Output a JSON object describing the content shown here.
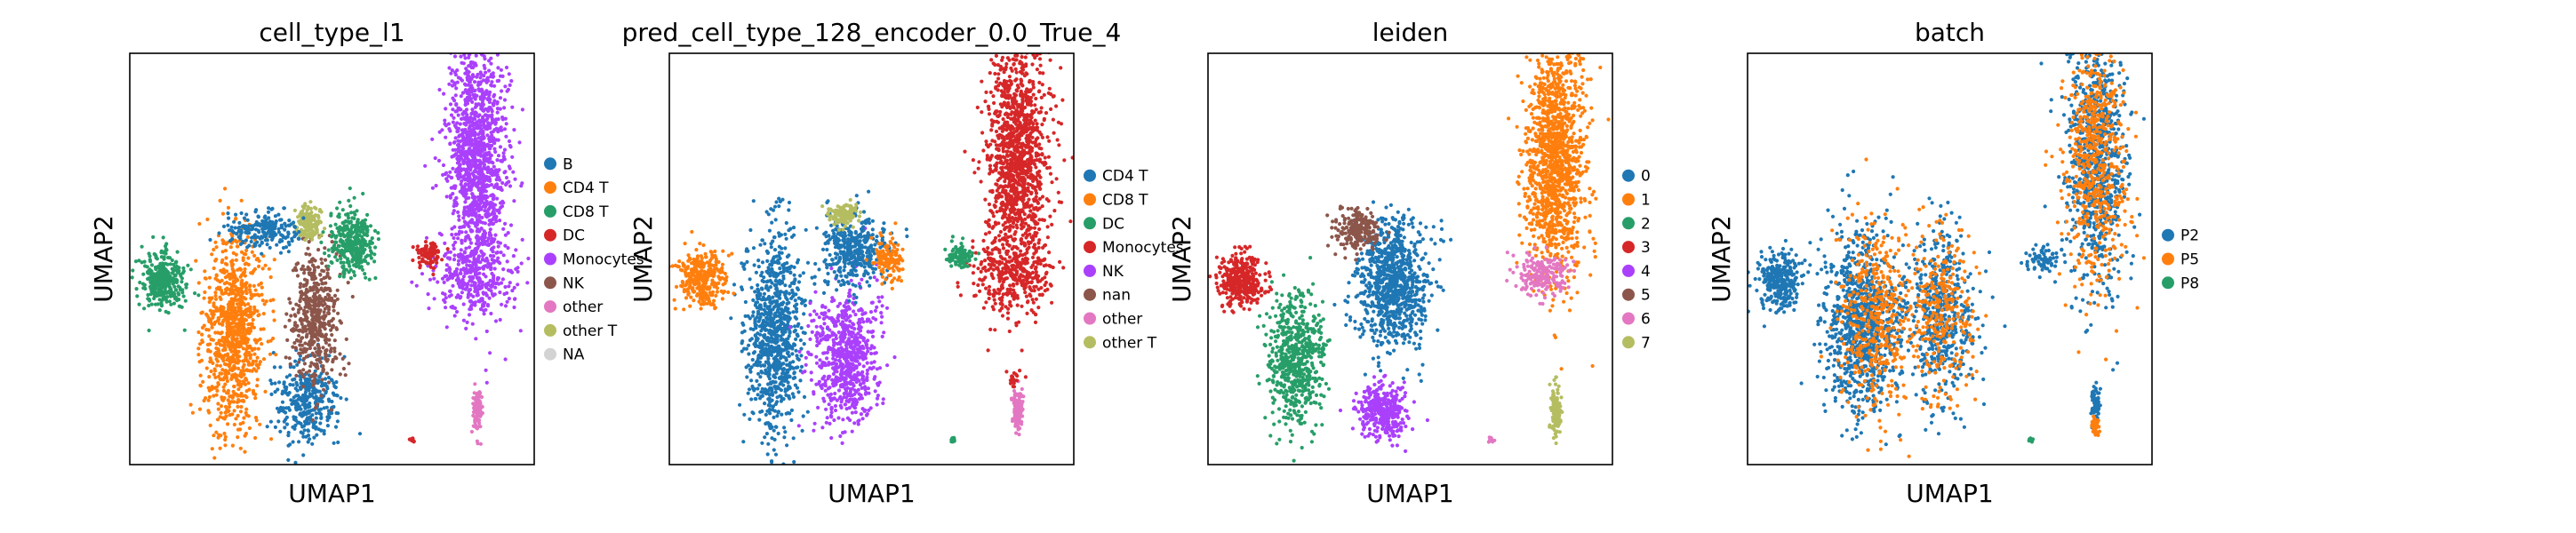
{
  "chart_data": [
    {
      "type": "scatter",
      "title": "cell_type_l1",
      "xlabel": "UMAP1",
      "ylabel": "UMAP2",
      "grid": false,
      "legend_placement": "right",
      "legend": [
        {
          "label": "B",
          "color": "#1f77b4"
        },
        {
          "label": "CD4 T",
          "color": "#ff7f0e"
        },
        {
          "label": "CD8 T",
          "color": "#279e68"
        },
        {
          "label": "DC",
          "color": "#d62728"
        },
        {
          "label": "Monocytes",
          "color": "#aa40fc"
        },
        {
          "label": "NK",
          "color": "#8c564b"
        },
        {
          "label": "other",
          "color": "#e377c2"
        },
        {
          "label": "other T",
          "color": "#b5bd61"
        },
        {
          "label": "NA",
          "color": "#d3d3d3"
        }
      ],
      "clusters": [
        {
          "label": "Monocytes",
          "x": 8.6,
          "y": 7.4,
          "sx": 0.75,
          "sy": 3.0,
          "n": 1300
        },
        {
          "label": "Monocytes",
          "x": 8.5,
          "y": 4.6,
          "sx": 1.0,
          "sy": 0.9,
          "n": 300
        },
        {
          "label": "B",
          "x": 4.4,
          "y": 1.6,
          "sx": 0.75,
          "sy": 1.1,
          "n": 350
        },
        {
          "label": "CD4 T",
          "x": 2.6,
          "y": 3.2,
          "sx": 0.7,
          "sy": 2.4,
          "n": 900
        },
        {
          "label": "NK",
          "x": 4.6,
          "y": 3.6,
          "sx": 0.6,
          "sy": 1.6,
          "n": 500
        },
        {
          "label": "CD8 T",
          "x": 5.5,
          "y": 5.4,
          "sx": 0.55,
          "sy": 0.8,
          "n": 350
        },
        {
          "label": "other T",
          "x": 4.4,
          "y": 5.9,
          "sx": 0.3,
          "sy": 0.4,
          "n": 150
        },
        {
          "label": "CD8 T",
          "x": 0.8,
          "y": 4.5,
          "sx": 0.55,
          "sy": 0.7,
          "n": 350
        },
        {
          "label": "B",
          "x": 3.3,
          "y": 5.7,
          "sx": 0.9,
          "sy": 0.4,
          "n": 200
        },
        {
          "label": "DC",
          "x": 7.4,
          "y": 5.1,
          "sx": 0.3,
          "sy": 0.3,
          "n": 100
        },
        {
          "label": "other",
          "x": 8.6,
          "y": 1.3,
          "sx": 0.12,
          "sy": 0.55,
          "n": 120
        },
        {
          "label": "DC",
          "x": 7.0,
          "y": 0.6,
          "sx": 0.06,
          "sy": 0.06,
          "n": 12
        }
      ]
    },
    {
      "type": "scatter",
      "title": "pred_cell_type_128_encoder_0.0_True_4",
      "xlabel": "UMAP1",
      "ylabel": "UMAP2",
      "grid": false,
      "legend_placement": "right",
      "legend": [
        {
          "label": "CD4 T",
          "color": "#1f77b4"
        },
        {
          "label": "CD8 T",
          "color": "#ff7f0e"
        },
        {
          "label": "DC",
          "color": "#279e68"
        },
        {
          "label": "Monocytes",
          "color": "#d62728"
        },
        {
          "label": "NK",
          "color": "#aa40fc"
        },
        {
          "label": "nan",
          "color": "#8c564b"
        },
        {
          "label": "other",
          "color": "#e377c2"
        },
        {
          "label": "other T",
          "color": "#b5bd61"
        }
      ],
      "clusters": [
        {
          "label": "Monocytes",
          "x": 8.6,
          "y": 7.4,
          "sx": 0.75,
          "sy": 3.0,
          "n": 1300
        },
        {
          "label": "Monocytes",
          "x": 8.5,
          "y": 4.6,
          "sx": 1.0,
          "sy": 0.9,
          "n": 300
        },
        {
          "label": "CD4 T",
          "x": 2.6,
          "y": 3.2,
          "sx": 0.7,
          "sy": 2.4,
          "n": 900
        },
        {
          "label": "NK",
          "x": 4.4,
          "y": 2.6,
          "sx": 0.8,
          "sy": 1.6,
          "n": 700
        },
        {
          "label": "CD4 T",
          "x": 4.5,
          "y": 5.2,
          "sx": 0.8,
          "sy": 0.9,
          "n": 400
        },
        {
          "label": "CD8 T",
          "x": 0.8,
          "y": 4.5,
          "sx": 0.55,
          "sy": 0.7,
          "n": 350
        },
        {
          "label": "other T",
          "x": 4.3,
          "y": 6.1,
          "sx": 0.35,
          "sy": 0.3,
          "n": 120
        },
        {
          "label": "CD8 T",
          "x": 5.4,
          "y": 5.0,
          "sx": 0.35,
          "sy": 0.5,
          "n": 120
        },
        {
          "label": "DC",
          "x": 7.2,
          "y": 5.1,
          "sx": 0.3,
          "sy": 0.3,
          "n": 100
        },
        {
          "label": "other",
          "x": 8.6,
          "y": 1.3,
          "sx": 0.12,
          "sy": 0.55,
          "n": 120
        },
        {
          "label": "Monocytes",
          "x": 8.5,
          "y": 2.1,
          "sx": 0.08,
          "sy": 0.15,
          "n": 20
        },
        {
          "label": "DC",
          "x": 7.0,
          "y": 0.6,
          "sx": 0.06,
          "sy": 0.06,
          "n": 12
        }
      ]
    },
    {
      "type": "scatter",
      "title": "leiden",
      "xlabel": "UMAP1",
      "ylabel": "UMAP2",
      "grid": false,
      "legend_placement": "right",
      "legend": [
        {
          "label": "0",
          "color": "#1f77b4"
        },
        {
          "label": "1",
          "color": "#ff7f0e"
        },
        {
          "label": "2",
          "color": "#279e68"
        },
        {
          "label": "3",
          "color": "#d62728"
        },
        {
          "label": "4",
          "color": "#aa40fc"
        },
        {
          "label": "5",
          "color": "#8c564b"
        },
        {
          "label": "6",
          "color": "#e377c2"
        },
        {
          "label": "7",
          "color": "#b5bd61"
        }
      ],
      "clusters": [
        {
          "label": "1",
          "x": 8.6,
          "y": 7.4,
          "sx": 0.75,
          "sy": 3.0,
          "n": 1300
        },
        {
          "label": "6",
          "x": 8.3,
          "y": 4.6,
          "sx": 0.6,
          "sy": 0.5,
          "n": 200
        },
        {
          "label": "0",
          "x": 4.6,
          "y": 4.4,
          "sx": 0.9,
          "sy": 1.5,
          "n": 900
        },
        {
          "label": "2",
          "x": 2.2,
          "y": 2.6,
          "sx": 0.7,
          "sy": 1.6,
          "n": 600
        },
        {
          "label": "3",
          "x": 0.8,
          "y": 4.5,
          "sx": 0.55,
          "sy": 0.7,
          "n": 350
        },
        {
          "label": "5",
          "x": 3.7,
          "y": 5.7,
          "sx": 0.5,
          "sy": 0.5,
          "n": 220
        },
        {
          "label": "4",
          "x": 4.3,
          "y": 1.3,
          "sx": 0.6,
          "sy": 0.6,
          "n": 350
        },
        {
          "label": "7",
          "x": 8.6,
          "y": 1.3,
          "sx": 0.12,
          "sy": 0.55,
          "n": 120
        },
        {
          "label": "6",
          "x": 7.0,
          "y": 0.6,
          "sx": 0.06,
          "sy": 0.06,
          "n": 12
        }
      ]
    },
    {
      "type": "scatter",
      "title": "batch",
      "xlabel": "UMAP1",
      "ylabel": "UMAP2",
      "grid": false,
      "legend_placement": "right",
      "legend": [
        {
          "label": "P2",
          "color": "#1f77b4"
        },
        {
          "label": "P5",
          "color": "#ff7f0e"
        },
        {
          "label": "P8",
          "color": "#279e68"
        }
      ],
      "clusters": [
        {
          "label": "P2",
          "x": 8.6,
          "y": 7.4,
          "sx": 0.75,
          "sy": 3.0,
          "n": 800
        },
        {
          "label": "P5",
          "x": 8.6,
          "y": 7.4,
          "sx": 0.75,
          "sy": 3.0,
          "n": 600
        },
        {
          "label": "P2",
          "x": 2.8,
          "y": 3.4,
          "sx": 0.9,
          "sy": 2.2,
          "n": 900
        },
        {
          "label": "P5",
          "x": 3.2,
          "y": 3.6,
          "sx": 0.9,
          "sy": 2.2,
          "n": 450
        },
        {
          "label": "P2",
          "x": 4.8,
          "y": 3.6,
          "sx": 0.8,
          "sy": 2.0,
          "n": 500
        },
        {
          "label": "P5",
          "x": 4.8,
          "y": 3.6,
          "sx": 0.8,
          "sy": 2.0,
          "n": 300
        },
        {
          "label": "P2",
          "x": 0.8,
          "y": 4.5,
          "sx": 0.55,
          "sy": 0.7,
          "n": 300
        },
        {
          "label": "P2",
          "x": 7.3,
          "y": 5.0,
          "sx": 0.4,
          "sy": 0.3,
          "n": 80
        },
        {
          "label": "P2",
          "x": 8.6,
          "y": 1.5,
          "sx": 0.1,
          "sy": 0.4,
          "n": 70
        },
        {
          "label": "P5",
          "x": 8.6,
          "y": 0.9,
          "sx": 0.1,
          "sy": 0.25,
          "n": 50
        },
        {
          "label": "P8",
          "x": 7.0,
          "y": 0.6,
          "sx": 0.06,
          "sy": 0.06,
          "n": 12
        }
      ]
    }
  ]
}
